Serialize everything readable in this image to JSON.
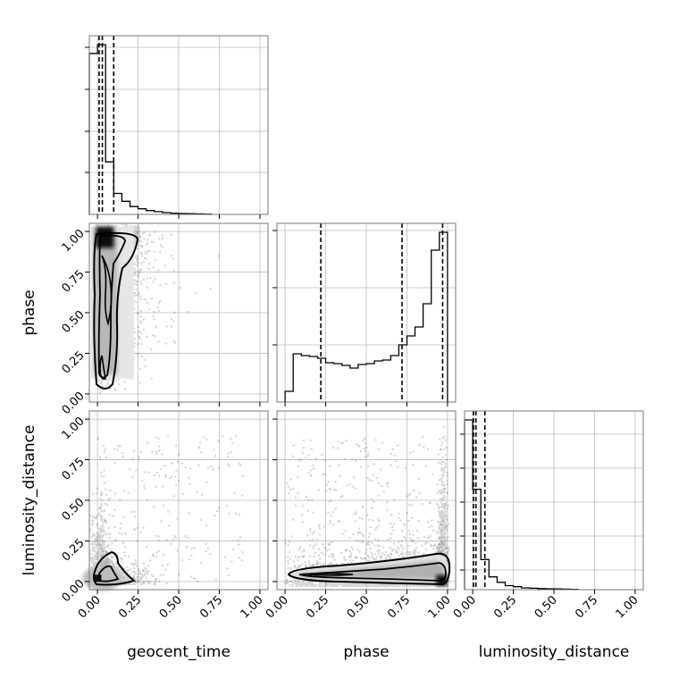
{
  "chart_data": {
    "type": "corner",
    "parameters": [
      "geocent_time",
      "phase",
      "luminosity_distance"
    ],
    "tick_labels": [
      "0.00",
      "0.25",
      "0.50",
      "0.75",
      "1.00"
    ],
    "axis_range": [
      -0.05,
      1.05
    ],
    "grid": true,
    "histograms": [
      {
        "parameter": "geocent_time",
        "bin_edges": [
          -0.05,
          0.0,
          0.05,
          0.1,
          0.15,
          0.2,
          0.25,
          0.3,
          0.35,
          0.4,
          0.45,
          0.5,
          0.55,
          0.6,
          0.65,
          0.7
        ],
        "density": [
          0.92,
          0.97,
          0.3,
          0.12,
          0.075,
          0.045,
          0.032,
          0.022,
          0.016,
          0.01,
          0.007,
          0.005,
          0.004,
          0.003,
          0.002
        ],
        "quantiles": [
          0.01,
          0.03,
          0.1
        ]
      },
      {
        "parameter": "phase",
        "bin_edges": [
          0.0,
          0.05,
          0.1,
          0.15,
          0.2,
          0.25,
          0.3,
          0.35,
          0.4,
          0.45,
          0.5,
          0.55,
          0.6,
          0.65,
          0.7,
          0.75,
          0.8,
          0.85,
          0.9,
          0.95,
          1.0
        ],
        "density": [
          0.06,
          0.27,
          0.26,
          0.255,
          0.245,
          0.22,
          0.215,
          0.205,
          0.19,
          0.21,
          0.215,
          0.23,
          0.235,
          0.26,
          0.32,
          0.37,
          0.42,
          0.55,
          0.85,
          0.95
        ],
        "quantiles": [
          0.22,
          0.72,
          0.97
        ]
      },
      {
        "parameter": "luminosity_distance",
        "bin_edges": [
          -0.05,
          0.0,
          0.05,
          0.1,
          0.15,
          0.2,
          0.25,
          0.3,
          0.35,
          0.4,
          0.45,
          0.5,
          0.55,
          0.6,
          0.65
        ],
        "density": [
          0.93,
          0.55,
          0.165,
          0.07,
          0.04,
          0.022,
          0.016,
          0.01,
          0.008,
          0.006,
          0.005,
          0.004,
          0.003,
          0.002
        ],
        "quantiles": [
          0.005,
          0.02,
          0.075
        ]
      }
    ],
    "joint_panels": [
      {
        "x": "geocent_time",
        "y": "phase"
      },
      {
        "x": "geocent_time",
        "y": "luminosity_distance"
      },
      {
        "x": "phase",
        "y": "luminosity_distance"
      }
    ]
  }
}
